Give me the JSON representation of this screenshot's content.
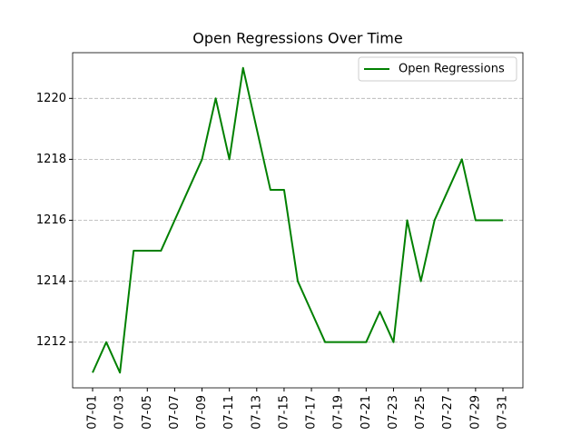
{
  "chart_data": {
    "type": "line",
    "title": "Open Regressions Over Time",
    "categories": [
      "07-01",
      null,
      "07-03",
      null,
      "07-05",
      null,
      "07-07",
      null,
      "07-09",
      null,
      "07-11",
      null,
      "07-13",
      null,
      "07-15",
      null,
      "07-17",
      null,
      "07-19",
      null,
      "07-21",
      null,
      "07-23",
      null,
      "07-25",
      null,
      "07-27",
      null,
      "07-29",
      null,
      "07-31"
    ],
    "series": [
      {
        "name": "Open Regressions",
        "color": "#008000",
        "values": [
          1211,
          1212,
          1211,
          1215,
          1215,
          1215,
          1216,
          1217,
          1218,
          1220,
          1218,
          1221,
          1219,
          1217,
          1217,
          1214,
          1213,
          1212,
          1212,
          1212,
          1212,
          1213,
          1212,
          1216,
          1214,
          1216,
          1217,
          1218,
          1216,
          1216,
          1216
        ]
      }
    ],
    "ylim": [
      1210.5,
      1221.5
    ],
    "yticks": [
      1212,
      1214,
      1216,
      1218,
      1220
    ],
    "grid": true,
    "legend": "upper right"
  }
}
